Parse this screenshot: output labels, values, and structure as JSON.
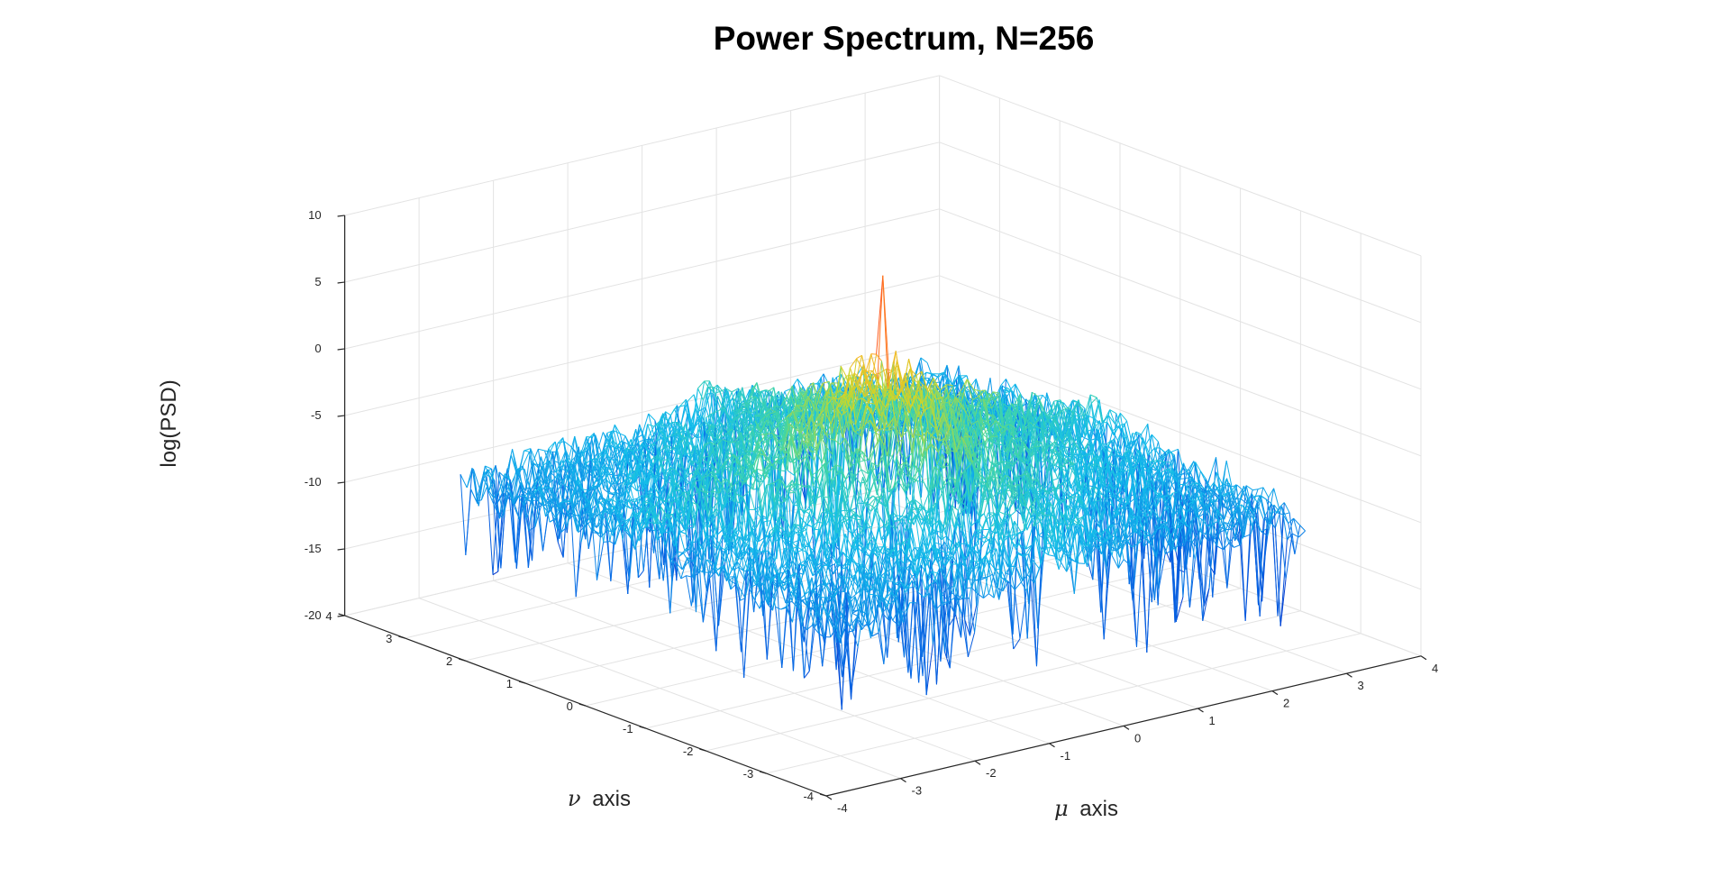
{
  "chart_data": {
    "type": "surface",
    "title": "Power Spectrum, N=256",
    "zlabel": "log(PSD)",
    "x_axis": {
      "symbol": "μ",
      "label": "axis",
      "lim": [
        -4,
        4
      ],
      "ticks": [
        "-4",
        "-3",
        "-2",
        "-1",
        "0",
        "1",
        "2",
        "3",
        "4"
      ]
    },
    "y_axis": {
      "symbol": "ν",
      "label": "axis",
      "lim": [
        -4,
        4
      ],
      "ticks": [
        "-4",
        "-3",
        "-2",
        "-1",
        "0",
        "1",
        "2",
        "3",
        "4"
      ]
    },
    "z_axis": {
      "lim": [
        -20,
        10
      ],
      "ticks": [
        "-20",
        "-15",
        "-10",
        "-5",
        "0",
        "5",
        "10"
      ]
    },
    "domain": {
      "mu": [
        -3.14,
        3.14
      ],
      "nu": [
        -3.14,
        3.14
      ]
    },
    "grid": true,
    "colormap": "parula",
    "colors": {
      "low": "#0046d6",
      "mid": "#22c8e8",
      "high_mid": "#e6d21c",
      "peak": "#ff5a1f"
    },
    "surface_profile": {
      "edge_level": -11,
      "center_level": -1,
      "peak_value": 7,
      "noise_amplitude": 3.5
    }
  }
}
